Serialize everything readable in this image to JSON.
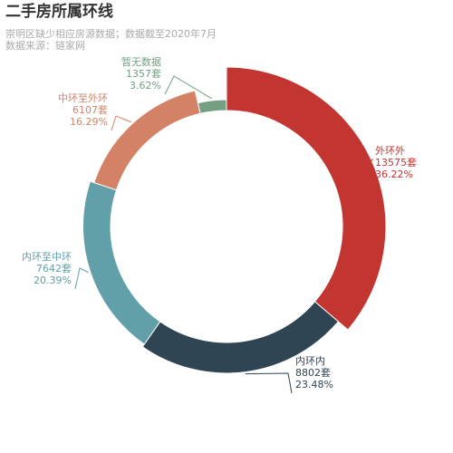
{
  "title": "二手房所属环线",
  "subtitle_lines": [
    "崇明区缺少相应房源数据；数据截至2020年7月",
    "数据来源：链家网"
  ],
  "chart_data": {
    "type": "pie",
    "variant": "donut",
    "title": "二手房所属环线",
    "subtitle": "崇明区缺少相应房源数据；数据截至2020年7月 数据来源：链家网",
    "unit": "套",
    "legend": "none",
    "slices": [
      {
        "name": "外环外",
        "value": 13575,
        "percent": "36.22%",
        "color": "#c23531"
      },
      {
        "name": "内环内",
        "value": 8802,
        "percent": "23.48%",
        "color": "#2f4554"
      },
      {
        "name": "内环至中环",
        "value": 7642,
        "percent": "20.39%",
        "color": "#61a0a8"
      },
      {
        "name": "中环至外环",
        "value": 6107,
        "percent": "16.29%",
        "color": "#d48265"
      },
      {
        "name": "暂无数据",
        "value": 1357,
        "percent": "3.62%",
        "color": "#749f83"
      }
    ]
  }
}
